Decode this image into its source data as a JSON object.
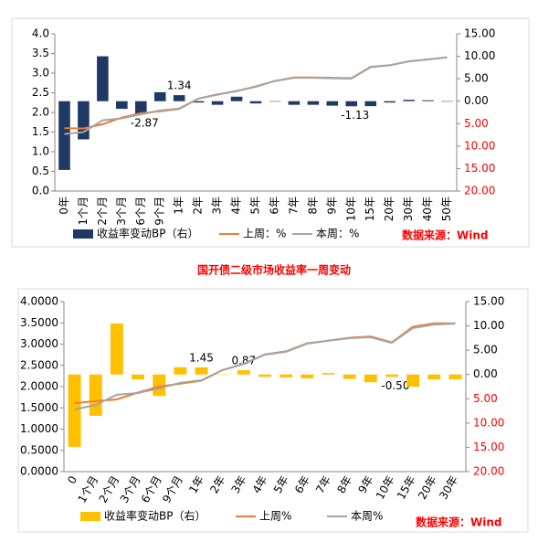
{
  "chart_data": [
    {
      "type": "combo",
      "categories": [
        "0年",
        "1个月",
        "2个月",
        "3个月",
        "6个月",
        "9个月",
        "1年",
        "2年",
        "3年",
        "4年",
        "5年",
        "6年",
        "7年",
        "8年",
        "9年",
        "10年",
        "15年",
        "20年",
        "30年",
        "40年",
        "50年"
      ],
      "series": [
        {
          "name": "收益率变动BP（右）",
          "color": "#1f3864",
          "axis": "y2",
          "kind": "bar",
          "values": [
            -15.3,
            -8.5,
            10.0,
            -1.7,
            -2.87,
            2.0,
            1.34,
            -0.3,
            -0.8,
            1.0,
            -0.5,
            0,
            -0.8,
            -0.8,
            -1.0,
            -1.13,
            -1.1,
            -0.3,
            0.3,
            0.2,
            0
          ],
          "value_labels": [
            null,
            null,
            null,
            null,
            "-2.87",
            null,
            "1.34",
            null,
            null,
            null,
            null,
            null,
            null,
            null,
            null,
            "-1.13",
            null,
            null,
            null,
            null,
            null
          ]
        },
        {
          "name": "上周：%",
          "color": "#ed7d31",
          "kind": "line",
          "values": [
            1.6,
            1.59,
            1.7,
            1.87,
            1.98,
            2.03,
            2.09,
            2.35,
            2.46,
            2.54,
            2.66,
            2.8,
            2.89,
            2.89,
            2.88,
            2.87,
            3.16,
            3.2,
            3.3,
            3.35,
            3.4
          ]
        },
        {
          "name": "本周：%",
          "color": "#a5a5a5",
          "kind": "line",
          "values": [
            1.45,
            1.5,
            1.8,
            1.85,
            1.95,
            2.05,
            2.1,
            2.35,
            2.45,
            2.55,
            2.65,
            2.8,
            2.88,
            2.88,
            2.87,
            2.86,
            3.15,
            3.2,
            3.3,
            3.35,
            3.4
          ]
        }
      ],
      "ylim": [
        0,
        4
      ],
      "yticks": [
        {
          "value": 0,
          "label": "0.0"
        },
        {
          "value": 0.5,
          "label": "0.5"
        },
        {
          "value": 1,
          "label": "1.0"
        },
        {
          "value": 1.5,
          "label": "1.5"
        },
        {
          "value": 2,
          "label": "2.0"
        },
        {
          "value": 2.5,
          "label": "2.5"
        },
        {
          "value": 3,
          "label": "3.0"
        },
        {
          "value": 3.5,
          "label": "3.5"
        },
        {
          "value": 4,
          "label": "4.0"
        }
      ],
      "y2lim": [
        -20,
        15
      ],
      "y2ticks": [
        {
          "value": 15,
          "label": "15.00"
        },
        {
          "value": 10,
          "label": "10.00"
        },
        {
          "value": 5,
          "label": "5.00"
        },
        {
          "value": 0,
          "label": "0.00"
        },
        {
          "value": -5,
          "label": "5.00"
        },
        {
          "value": -10,
          "label": "10.00"
        },
        {
          "value": -15,
          "label": "15.00"
        },
        {
          "value": -20,
          "label": "20.00"
        }
      ],
      "negative_tick_color": "#ff0000",
      "source": "数据来源：Wind"
    },
    {
      "type": "combo",
      "title": "国开债二级市场收益率一周变动",
      "categories": [
        "0",
        "1个月",
        "2个月",
        "3个月",
        "6个月",
        "9个月",
        "1年",
        "2年",
        "3年",
        "4年",
        "5年",
        "6年",
        "7年",
        "8年",
        "9年",
        "10年",
        "15年",
        "20年",
        "30年"
      ],
      "series": [
        {
          "name": "收益率变动BP（右）",
          "color": "#ffc000",
          "axis": "y2",
          "kind": "bar",
          "values": [
            -14.9,
            -8.5,
            10.5,
            -1.0,
            -4.4,
            1.5,
            1.45,
            -0.1,
            0.87,
            -0.5,
            -0.6,
            -0.8,
            0.3,
            -0.9,
            -1.6,
            -0.5,
            -2.5,
            -1.0,
            -1.0
          ],
          "value_labels": [
            null,
            null,
            null,
            null,
            null,
            null,
            "1.45",
            null,
            "0.87",
            null,
            null,
            null,
            null,
            null,
            null,
            "-0.50",
            null,
            null,
            null
          ]
        },
        {
          "name": "上周%",
          "color": "#ed7d31",
          "kind": "line",
          "values": [
            1.61,
            1.66,
            1.7,
            1.86,
            2.0,
            2.07,
            2.14,
            2.39,
            2.53,
            2.76,
            2.83,
            3.02,
            3.08,
            3.15,
            3.18,
            3.04,
            3.41,
            3.49,
            3.49
          ]
        },
        {
          "name": "本周%",
          "color": "#a5a5a5",
          "kind": "line",
          "values": [
            1.46,
            1.57,
            1.81,
            1.85,
            1.96,
            2.09,
            2.15,
            2.39,
            2.54,
            2.75,
            2.82,
            3.01,
            3.08,
            3.14,
            3.16,
            3.03,
            3.38,
            3.46,
            3.48
          ]
        }
      ],
      "ylim": [
        0,
        4
      ],
      "yticks": [
        {
          "value": 0,
          "label": "0.0000"
        },
        {
          "value": 0.5,
          "label": "0.5000"
        },
        {
          "value": 1,
          "label": "1.0000"
        },
        {
          "value": 1.5,
          "label": "1.5000"
        },
        {
          "value": 2,
          "label": "2.0000"
        },
        {
          "value": 2.5,
          "label": "2.5000"
        },
        {
          "value": 3,
          "label": "3.0000"
        },
        {
          "value": 3.5,
          "label": "3.5000"
        },
        {
          "value": 4,
          "label": "4.0000"
        }
      ],
      "y2lim": [
        -20,
        15
      ],
      "y2ticks": [
        {
          "value": 15,
          "label": "15.00"
        },
        {
          "value": 10,
          "label": "10.00"
        },
        {
          "value": 5,
          "label": "5.00"
        },
        {
          "value": 0,
          "label": "0.00"
        },
        {
          "value": -5,
          "label": "5.00"
        },
        {
          "value": -10,
          "label": "10.00"
        },
        {
          "value": -15,
          "label": "15.00"
        },
        {
          "value": -20,
          "label": "20.00"
        }
      ],
      "negative_tick_color": "#ff0000",
      "source": "数据来源：Wind"
    }
  ]
}
